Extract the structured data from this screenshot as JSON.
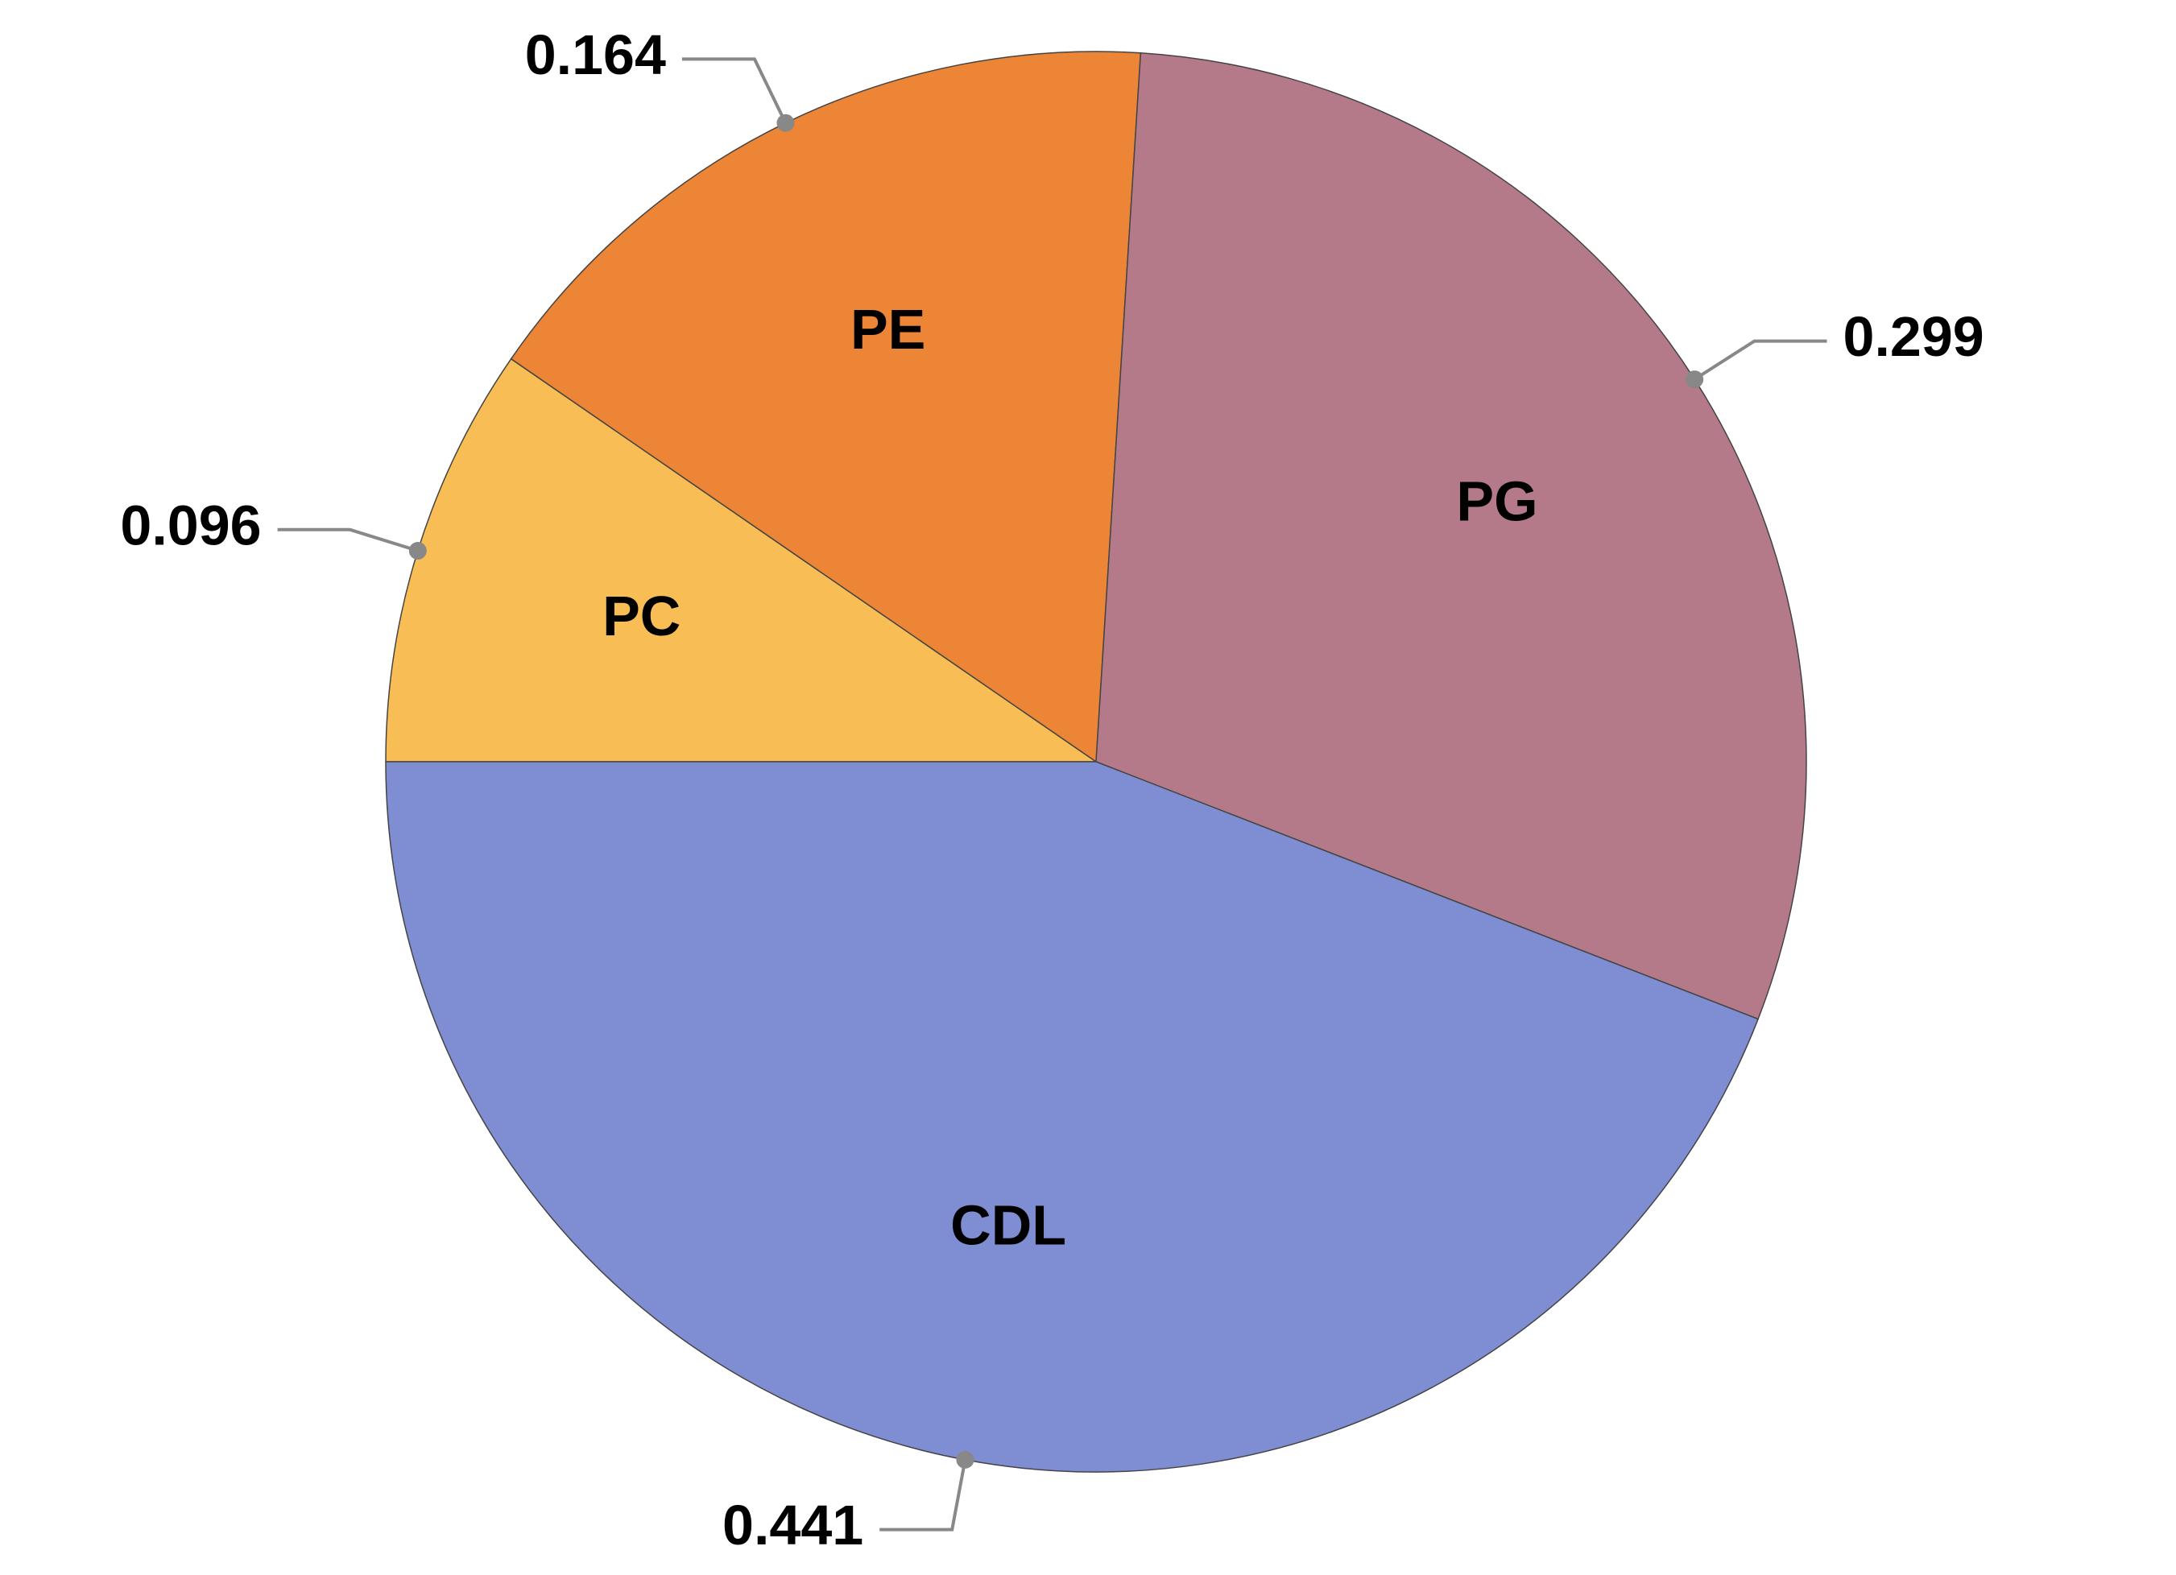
{
  "chart_data": {
    "type": "pie",
    "categories": [
      "PC",
      "PE",
      "PG",
      "CDL"
    ],
    "values": [
      0.096,
      0.164,
      0.299,
      0.441
    ],
    "colors": [
      "#f9bd55",
      "#ec8535",
      "#b57a8a",
      "#7f8dd3"
    ]
  }
}
